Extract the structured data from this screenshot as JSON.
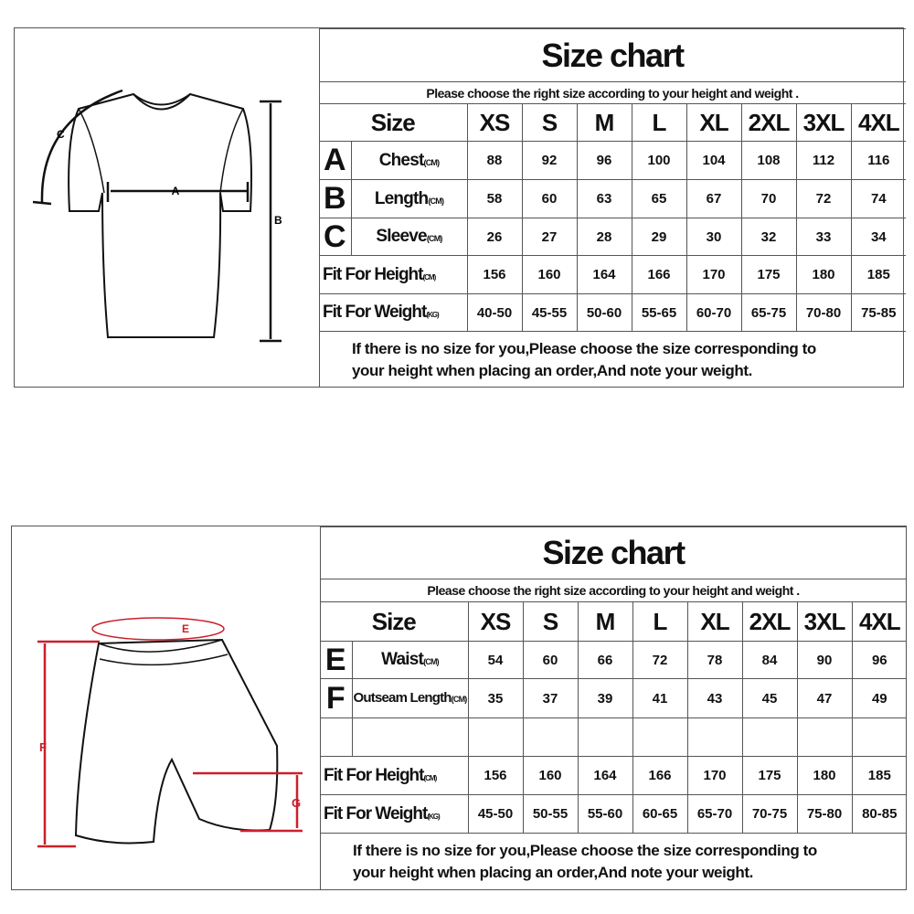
{
  "charts": [
    {
      "title": "Size chart",
      "subtitle": "Please choose the right size according to your height and weight .",
      "size_header": "Size",
      "sizes": [
        "XS",
        "S",
        "M",
        "L",
        "XL",
        "2XL",
        "3XL",
        "4XL"
      ],
      "rows": [
        {
          "letter": "A",
          "label": "Chest",
          "unit": "(CM)",
          "values": [
            "88",
            "92",
            "96",
            "100",
            "104",
            "108",
            "112",
            "116"
          ]
        },
        {
          "letter": "B",
          "label": "Length",
          "unit": "(CM)",
          "values": [
            "58",
            "60",
            "63",
            "65",
            "67",
            "70",
            "72",
            "74"
          ]
        },
        {
          "letter": "C",
          "label": "Sleeve",
          "unit": "(CM)",
          "values": [
            "26",
            "27",
            "28",
            "29",
            "30",
            "32",
            "33",
            "34"
          ]
        }
      ],
      "fit_rows": [
        {
          "label": "Fit For Height",
          "unit": "(CM)",
          "values": [
            "156",
            "160",
            "164",
            "166",
            "170",
            "175",
            "180",
            "185"
          ]
        },
        {
          "label": "Fit For Weight",
          "unit": "(KG)",
          "values": [
            "40-50",
            "45-55",
            "50-60",
            "55-65",
            "60-70",
            "65-75",
            "70-80",
            "75-85"
          ]
        }
      ],
      "note_lines": [
        "If there is no size for you,Please choose the size corresponding to",
        "your height when placing an order,And note your weight."
      ],
      "diagram_labels": [
        "A",
        "B",
        "C"
      ]
    },
    {
      "title": "Size chart",
      "subtitle": "Please choose the right size according to your height and weight .",
      "size_header": "Size",
      "sizes": [
        "XS",
        "S",
        "M",
        "L",
        "XL",
        "2XL",
        "3XL",
        "4XL"
      ],
      "rows": [
        {
          "letter": "E",
          "label": "Waist",
          "unit": "(CM)",
          "values": [
            "54",
            "60",
            "66",
            "72",
            "78",
            "84",
            "90",
            "96"
          ]
        },
        {
          "letter": "F",
          "label": "Outseam Length",
          "unit": "(CM)",
          "values": [
            "35",
            "37",
            "39",
            "41",
            "43",
            "45",
            "47",
            "49"
          ]
        },
        {
          "letter": "",
          "label": "",
          "unit": "",
          "values": [
            "",
            "",
            "",
            "",
            "",
            "",
            "",
            ""
          ]
        }
      ],
      "fit_rows": [
        {
          "label": "Fit For Height",
          "unit": "(CM)",
          "values": [
            "156",
            "160",
            "164",
            "166",
            "170",
            "175",
            "180",
            "185"
          ]
        },
        {
          "label": "Fit For Weight",
          "unit": "(KG)",
          "values": [
            "45-50",
            "50-55",
            "55-60",
            "60-65",
            "65-70",
            "70-75",
            "75-80",
            "80-85"
          ]
        }
      ],
      "note_lines": [
        "If there is no size for you,Please choose the size corresponding to",
        "your height when placing an order,And note your weight."
      ],
      "diagram_labels": [
        "E",
        "F",
        "G"
      ]
    }
  ],
  "colors": {
    "border": "#555555",
    "measure_red": "#cc1f2a",
    "ink": "#111111"
  }
}
